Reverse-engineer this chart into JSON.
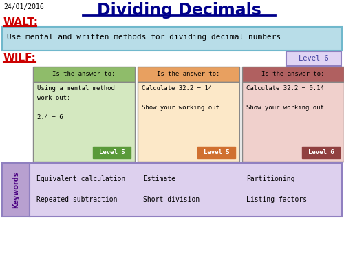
{
  "title": "Dividing Decimals",
  "date": "24/01/2016",
  "walt_label": "WALT:",
  "walt_text": "Use mental and written methods for dividing decimal numbers",
  "wilf_label": "WILF:",
  "level6_label": "Level 6",
  "col1_header": "Is the answer to:",
  "col2_header": "Is the answer to:",
  "col3_header": "Is the answer to:",
  "col1_body": "Using a mental method\nwork out:\n\n2.4 ÷ 6",
  "col2_body": "Calculate 32.2 ÷ 14\n\nShow your working out",
  "col3_body": "Calculate 32.2 ÷ 0.14\n\nShow your working out",
  "col1_level": "Level 5",
  "col2_level": "Level 5",
  "col3_level": "Level 6",
  "keywords_label": "Keywords",
  "kw_col1": [
    "Equivalent calculation",
    "Repeated subtraction"
  ],
  "kw_col2": [
    "Estimate",
    "Short division"
  ],
  "kw_col3": [
    "Partitioning",
    "Listing factors"
  ],
  "bg_color": "#ffffff",
  "walt_bg": "#b8dde8",
  "walt_border": "#70b8cc",
  "col1_header_bg": "#8fbc6a",
  "col1_body_bg": "#d4e8c0",
  "col1_level_bg": "#5a9a3a",
  "col2_header_bg": "#e8a060",
  "col2_body_bg": "#fce8c8",
  "col2_level_bg": "#d07030",
  "col3_header_bg": "#b06060",
  "col3_body_bg": "#f0d0cc",
  "col3_level_bg": "#904040",
  "kw_bg": "#ddd0ee",
  "kw_label_bg": "#b8a0d0",
  "level6_bg": "#e0d4f4",
  "level6_border": "#9080c0",
  "title_color": "#00008b",
  "walt_label_color": "#cc0000",
  "wilf_label_color": "#cc0000",
  "date_color": "#000000",
  "body_text_color": "#000000",
  "kw_text_color": "#000000",
  "kw_label_color": "#4b0082",
  "level6_text_color": "#4040a0"
}
